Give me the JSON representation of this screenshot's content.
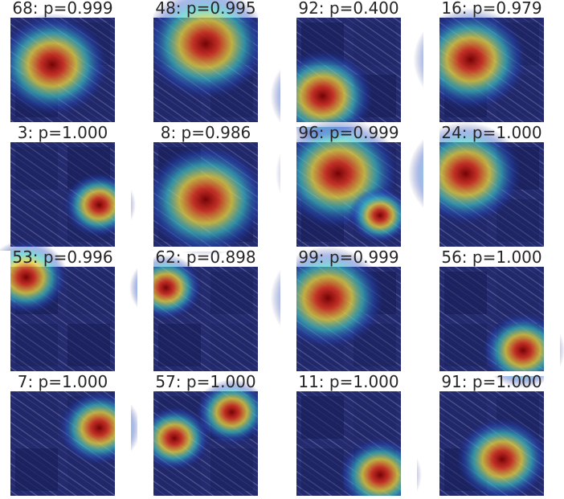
{
  "panels": [
    {
      "title": "68: p=0.999"
    },
    {
      "title": "48: p=0.995"
    },
    {
      "title": "92: p=0.400"
    },
    {
      "title": "16: p=0.979"
    },
    {
      "title": "3: p=1.000"
    },
    {
      "title": "8: p=0.986"
    },
    {
      "title": "96: p=0.999"
    },
    {
      "title": "24: p=1.000"
    },
    {
      "title": "53: p=0.996"
    },
    {
      "title": "62: p=0.898"
    },
    {
      "title": "99: p=0.999"
    },
    {
      "title": "56: p=1.000"
    },
    {
      "title": "7: p=1.000"
    },
    {
      "title": "57: p=1.000"
    },
    {
      "title": "11: p=1.000"
    },
    {
      "title": "91: p=1.000"
    }
  ]
}
